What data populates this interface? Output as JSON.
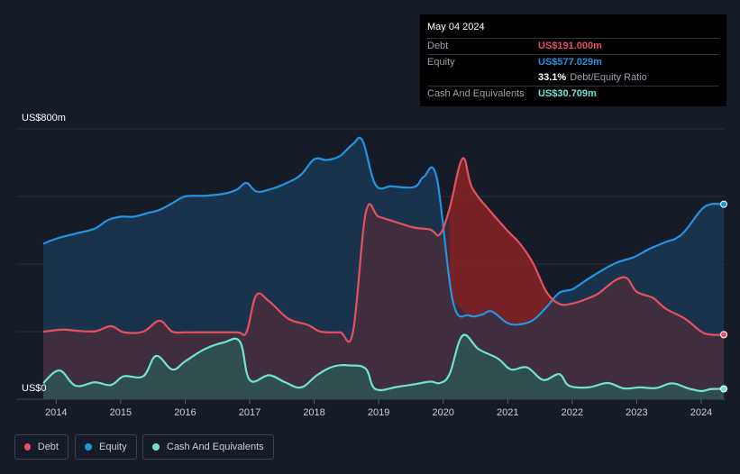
{
  "tooltip": {
    "date": "May 04 2024",
    "debt_label": "Debt",
    "debt_value": "US$191.000m",
    "equity_label": "Equity",
    "equity_value": "US$577.029m",
    "ratio_value": "33.1%",
    "ratio_label": "Debt/Equity Ratio",
    "cash_label": "Cash And Equivalents",
    "cash_value": "US$30.709m"
  },
  "colors": {
    "debt": "#e4505f",
    "equity": "#2394df",
    "cash": "#6fe3cf"
  },
  "legend": [
    {
      "name": "Debt",
      "color": "#e4505f"
    },
    {
      "name": "Equity",
      "color": "#2394df"
    },
    {
      "name": "Cash And Equivalents",
      "color": "#6fe3cf"
    }
  ],
  "chart_data": {
    "type": "area",
    "title": "",
    "xlabel": "",
    "ylabel": "",
    "y_unit_labels": {
      "top": "US$800m",
      "bottom": "US$0"
    },
    "ylim": [
      0,
      800
    ],
    "xlim": [
      2013.8,
      2024.35
    ],
    "x_ticks": [
      "2014",
      "2015",
      "2016",
      "2017",
      "2018",
      "2019",
      "2020",
      "2021",
      "2022",
      "2023",
      "2024"
    ],
    "series": [
      {
        "name": "Equity",
        "points": [
          [
            2013.8,
            460
          ],
          [
            2014.0,
            475
          ],
          [
            2014.3,
            490
          ],
          [
            2014.6,
            505
          ],
          [
            2014.8,
            530
          ],
          [
            2015.0,
            540
          ],
          [
            2015.2,
            540
          ],
          [
            2015.4,
            550
          ],
          [
            2015.6,
            560
          ],
          [
            2015.8,
            580
          ],
          [
            2016.0,
            600
          ],
          [
            2016.3,
            602
          ],
          [
            2016.6,
            608
          ],
          [
            2016.8,
            620
          ],
          [
            2016.95,
            640
          ],
          [
            2017.1,
            615
          ],
          [
            2017.3,
            620
          ],
          [
            2017.6,
            642
          ],
          [
            2017.8,
            665
          ],
          [
            2018.0,
            710
          ],
          [
            2018.2,
            708
          ],
          [
            2018.4,
            720
          ],
          [
            2018.6,
            755
          ],
          [
            2018.75,
            765
          ],
          [
            2018.95,
            635
          ],
          [
            2019.2,
            630
          ],
          [
            2019.55,
            628
          ],
          [
            2019.7,
            658
          ],
          [
            2019.9,
            655
          ],
          [
            2020.15,
            290
          ],
          [
            2020.4,
            248
          ],
          [
            2020.6,
            250
          ],
          [
            2020.75,
            260
          ],
          [
            2021.0,
            225
          ],
          [
            2021.2,
            222
          ],
          [
            2021.4,
            235
          ],
          [
            2021.6,
            272
          ],
          [
            2021.8,
            315
          ],
          [
            2022.0,
            325
          ],
          [
            2022.2,
            350
          ],
          [
            2022.45,
            380
          ],
          [
            2022.7,
            405
          ],
          [
            2022.95,
            420
          ],
          [
            2023.2,
            445
          ],
          [
            2023.45,
            465
          ],
          [
            2023.6,
            475
          ],
          [
            2023.75,
            498
          ],
          [
            2024.0,
            560
          ],
          [
            2024.15,
            577
          ],
          [
            2024.35,
            577
          ]
        ]
      },
      {
        "name": "Debt",
        "points": [
          [
            2013.8,
            200
          ],
          [
            2014.1,
            206
          ],
          [
            2014.3,
            203
          ],
          [
            2014.6,
            201
          ],
          [
            2014.85,
            216
          ],
          [
            2015.05,
            198
          ],
          [
            2015.35,
            200
          ],
          [
            2015.6,
            232
          ],
          [
            2015.8,
            200
          ],
          [
            2016.0,
            198
          ],
          [
            2016.3,
            198
          ],
          [
            2016.8,
            198
          ],
          [
            2016.95,
            198
          ],
          [
            2017.1,
            307
          ],
          [
            2017.3,
            290
          ],
          [
            2017.6,
            238
          ],
          [
            2017.9,
            220
          ],
          [
            2018.1,
            200
          ],
          [
            2018.4,
            198
          ],
          [
            2018.6,
            198
          ],
          [
            2018.8,
            552
          ],
          [
            2019.0,
            540
          ],
          [
            2019.3,
            522
          ],
          [
            2019.55,
            508
          ],
          [
            2019.8,
            502
          ],
          [
            2019.95,
            488
          ],
          [
            2020.1,
            565
          ],
          [
            2020.3,
            712
          ],
          [
            2020.45,
            625
          ],
          [
            2020.75,
            552
          ],
          [
            2021.0,
            498
          ],
          [
            2021.2,
            458
          ],
          [
            2021.4,
            400
          ],
          [
            2021.6,
            318
          ],
          [
            2021.8,
            282
          ],
          [
            2022.0,
            283
          ],
          [
            2022.2,
            295
          ],
          [
            2022.4,
            312
          ],
          [
            2022.55,
            335
          ],
          [
            2022.7,
            355
          ],
          [
            2022.85,
            358
          ],
          [
            2023.0,
            318
          ],
          [
            2023.25,
            300
          ],
          [
            2023.45,
            268
          ],
          [
            2023.75,
            238
          ],
          [
            2024.0,
            200
          ],
          [
            2024.15,
            191
          ],
          [
            2024.35,
            191
          ]
        ]
      },
      {
        "name": "Cash And Equivalents",
        "points": [
          [
            2013.8,
            48
          ],
          [
            2014.05,
            85
          ],
          [
            2014.3,
            40
          ],
          [
            2014.6,
            50
          ],
          [
            2014.85,
            42
          ],
          [
            2015.05,
            68
          ],
          [
            2015.35,
            68
          ],
          [
            2015.55,
            128
          ],
          [
            2015.8,
            88
          ],
          [
            2016.0,
            112
          ],
          [
            2016.3,
            148
          ],
          [
            2016.6,
            168
          ],
          [
            2016.85,
            170
          ],
          [
            2017.0,
            57
          ],
          [
            2017.3,
            71
          ],
          [
            2017.55,
            50
          ],
          [
            2017.8,
            35
          ],
          [
            2018.05,
            72
          ],
          [
            2018.3,
            97
          ],
          [
            2018.55,
            100
          ],
          [
            2018.8,
            90
          ],
          [
            2018.95,
            30
          ],
          [
            2019.3,
            37
          ],
          [
            2019.55,
            44
          ],
          [
            2019.8,
            52
          ],
          [
            2019.95,
            48
          ],
          [
            2020.1,
            75
          ],
          [
            2020.3,
            188
          ],
          [
            2020.55,
            148
          ],
          [
            2020.85,
            120
          ],
          [
            2021.05,
            88
          ],
          [
            2021.3,
            94
          ],
          [
            2021.55,
            57
          ],
          [
            2021.8,
            74
          ],
          [
            2021.95,
            40
          ],
          [
            2022.25,
            35
          ],
          [
            2022.55,
            48
          ],
          [
            2022.8,
            32
          ],
          [
            2023.05,
            35
          ],
          [
            2023.3,
            33
          ],
          [
            2023.55,
            47
          ],
          [
            2023.8,
            32
          ],
          [
            2024.0,
            24
          ],
          [
            2024.15,
            30
          ],
          [
            2024.35,
            30.7
          ]
        ]
      }
    ]
  }
}
